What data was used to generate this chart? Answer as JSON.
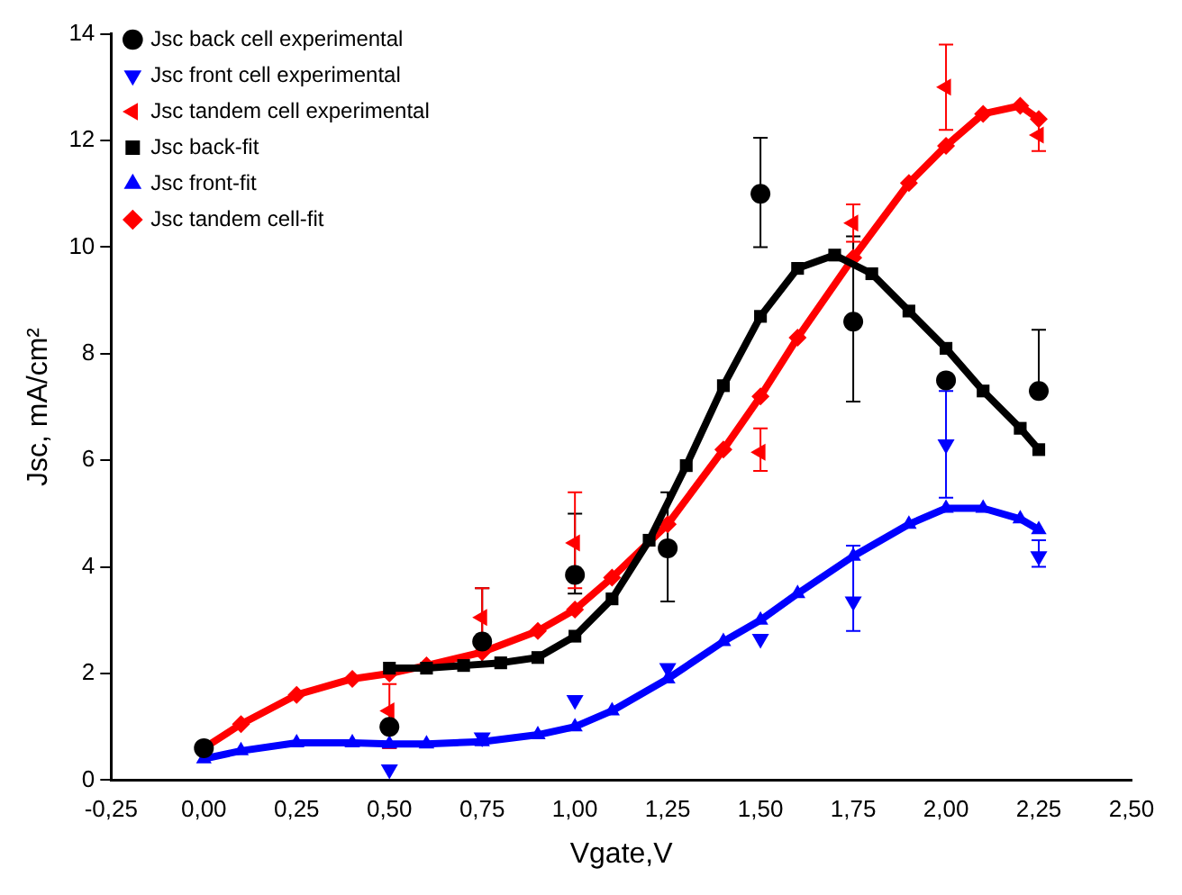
{
  "chart_data": {
    "type": "scatter",
    "xlabel": "Vgate,V",
    "ylabel": "Jsc, mA/cm²",
    "xlim": [
      -0.25,
      2.5
    ],
    "xticks": [
      {
        "value": -0.25,
        "label": "-0,25"
      },
      {
        "value": 0,
        "label": "0,00"
      },
      {
        "value": 0.25,
        "label": "0,25"
      },
      {
        "value": 0.5,
        "label": "0,50"
      },
      {
        "value": 0.75,
        "label": "0,75"
      },
      {
        "value": 1,
        "label": "1,00"
      },
      {
        "value": 1.25,
        "label": "1,25"
      },
      {
        "value": 1.5,
        "label": "1,50"
      },
      {
        "value": 1.75,
        "label": "1,75"
      },
      {
        "value": 2,
        "label": "2,00"
      },
      {
        "value": 2.25,
        "label": "2,25"
      },
      {
        "value": 2.5,
        "label": "2,50"
      }
    ],
    "ylim": [
      0,
      14
    ],
    "yticks": [
      0,
      2,
      4,
      6,
      8,
      10,
      12,
      14
    ],
    "grid": false,
    "legend": "top left",
    "series": [
      {
        "name": "Jsc back-fit",
        "type": "line",
        "marker": "square",
        "color": "#000000",
        "x": [
          0.5,
          0.6,
          0.7,
          0.8,
          0.9,
          1.0,
          1.1,
          1.2,
          1.3,
          1.4,
          1.5,
          1.6,
          1.7,
          1.8,
          1.9,
          2.0,
          2.1,
          2.2,
          2.25
        ],
        "values": [
          2.1,
          2.1,
          2.15,
          2.2,
          2.3,
          2.7,
          3.4,
          4.5,
          5.9,
          7.4,
          8.7,
          9.6,
          9.85,
          9.5,
          8.8,
          8.1,
          7.3,
          6.6,
          6.2
        ]
      },
      {
        "name": "Jsc back cell experimental",
        "type": "scatter",
        "marker": "circle",
        "color": "#000000",
        "x": [
          0,
          0.5,
          0.75,
          1.0,
          1.25,
          1.5,
          1.75,
          2.0,
          2.25
        ],
        "values": [
          0.6,
          1.0,
          2.6,
          3.85,
          4.35,
          11.0,
          8.6,
          7.5,
          7.3
        ],
        "errors": [
          null,
          null,
          [
            2.2,
            3.6
          ],
          [
            3.5,
            5.0
          ],
          [
            3.35,
            5.4
          ],
          [
            10.0,
            12.05
          ],
          [
            7.1,
            10.2
          ],
          null,
          [
            7.3,
            8.45
          ]
        ]
      },
      {
        "name": "Jsc front-fit",
        "type": "line",
        "marker": "triangle",
        "color": "#0000ff",
        "x": [
          0,
          0.1,
          0.25,
          0.4,
          0.5,
          0.6,
          0.75,
          0.9,
          1.0,
          1.1,
          1.25,
          1.4,
          1.5,
          1.6,
          1.75,
          1.9,
          2.0,
          2.1,
          2.2,
          2.25
        ],
        "values": [
          0.4,
          0.55,
          0.7,
          0.7,
          0.68,
          0.68,
          0.72,
          0.85,
          1.0,
          1.3,
          1.9,
          2.6,
          3.0,
          3.5,
          4.2,
          4.8,
          5.1,
          5.1,
          4.9,
          4.7
        ]
      },
      {
        "name": "Jsc front cell experimental",
        "type": "scatter",
        "marker": "triangle-down",
        "color": "#0000ff",
        "x": [
          0.5,
          0.75,
          1.0,
          1.25,
          1.5,
          1.75,
          2.0,
          2.25
        ],
        "values": [
          0.2,
          0.8,
          1.5,
          2.1,
          2.65,
          3.35,
          6.3,
          4.2
        ],
        "errors": [
          null,
          null,
          null,
          null,
          null,
          [
            2.8,
            4.4
          ],
          [
            5.3,
            7.3
          ],
          [
            4.0,
            4.5
          ]
        ]
      },
      {
        "name": "Jsc tandem cell-fit",
        "type": "line",
        "marker": "diamond",
        "color": "#ff0000",
        "x": [
          0,
          0.1,
          0.25,
          0.4,
          0.5,
          0.6,
          0.75,
          0.9,
          1.0,
          1.1,
          1.25,
          1.4,
          1.5,
          1.6,
          1.75,
          1.9,
          2.0,
          2.1,
          2.2,
          2.25
        ],
        "values": [
          0.6,
          1.05,
          1.6,
          1.9,
          2.0,
          2.15,
          2.4,
          2.8,
          3.2,
          3.8,
          4.8,
          6.2,
          7.2,
          8.3,
          9.8,
          11.2,
          11.9,
          12.5,
          12.65,
          12.4
        ]
      },
      {
        "name": "Jsc tandem cell experimental",
        "type": "scatter",
        "marker": "triangle-left",
        "color": "#ff0000",
        "x": [
          0.5,
          0.75,
          1.0,
          1.25,
          1.5,
          1.75,
          2.0,
          2.25
        ],
        "values": [
          1.3,
          3.05,
          4.45,
          null,
          6.15,
          10.45,
          13.0,
          12.1
        ],
        "errors": [
          [
            0.6,
            1.8
          ],
          [
            2.5,
            3.6
          ],
          [
            3.6,
            5.4
          ],
          null,
          [
            5.8,
            6.6
          ],
          [
            10.1,
            10.8
          ],
          [
            12.2,
            13.8
          ],
          [
            11.8,
            12.4
          ]
        ]
      }
    ]
  }
}
